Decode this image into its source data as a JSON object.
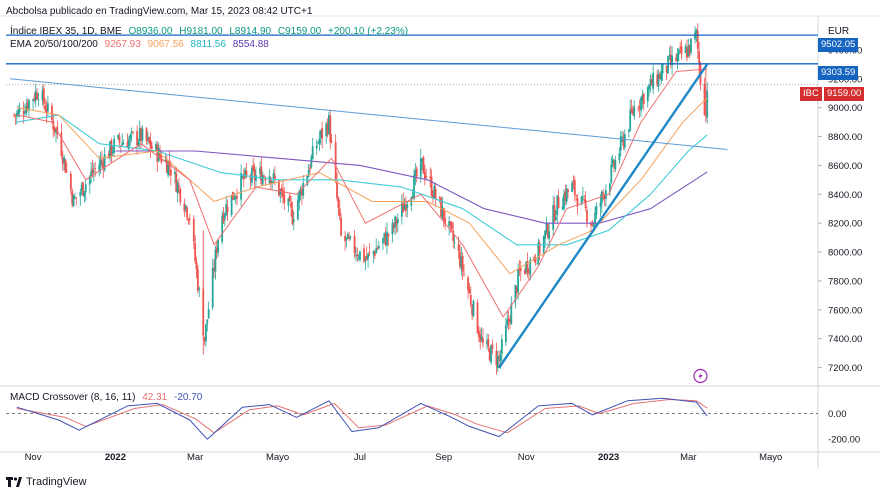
{
  "publisher": "Abcbolsa publicado en TradingView.com, Mar 15, 2023 08:42 UTC+1",
  "legend": {
    "symbol": "Índice IBEX 35, 1D, BME",
    "open": "O8936.00",
    "high": "H9181.00",
    "low": "L8914.90",
    "close": "C9159.00",
    "change": "+200.10 (+2.23%)",
    "ema_label": "EMA 20/50/100/200",
    "ema20": "9267.93",
    "ema50": "9067.56",
    "ema100": "8811.56",
    "ema200": "8554.88"
  },
  "currency": "EUR",
  "macd_label": "MACD Crossover (8, 16, 11)",
  "macd_values": [
    "42.31",
    "-20.70"
  ],
  "price_tags": {
    "resistance_high": "9502.05",
    "resistance_low": "9303.59",
    "symbol_tag": "IBC",
    "last": "9159.00"
  },
  "branding": "TradingView",
  "colors": {
    "up": "#26a69a",
    "down": "#ef5350",
    "ema20": "#f06e6e",
    "ema50": "#f7a35c",
    "ema100": "#3ecbd6",
    "ema200": "#7e57c2",
    "trendline": "#1e88c7",
    "hline": "#1565c0",
    "last": "#d32f2f",
    "macd": "#3f51b5",
    "signal": "#e57373"
  },
  "chart_data": {
    "type": "candlestick",
    "y_axis": {
      "ylim": [
        7100,
        9600
      ],
      "ticks": [
        7200,
        7400,
        7600,
        7800,
        8000,
        8200,
        8400,
        8600,
        8800,
        9000,
        9200,
        9400
      ]
    },
    "x_axis": {
      "ticks": [
        "Nov",
        "2022",
        "Mar",
        "Mayo",
        "Jul",
        "Sep",
        "Nov",
        "2023",
        "Mar",
        "Mayo"
      ]
    },
    "horizontal_lines": [
      9502.05,
      9303.59
    ],
    "close_path": [
      [
        "2021-10-20",
        8950
      ],
      [
        "2021-11-05",
        9120
      ],
      [
        "2021-11-20",
        8800
      ],
      [
        "2021-12-01",
        8350
      ],
      [
        "2021-12-15",
        8550
      ],
      [
        "2022-01-01",
        8750
      ],
      [
        "2022-01-20",
        8800
      ],
      [
        "2022-02-10",
        8600
      ],
      [
        "2022-02-25",
        8250
      ],
      [
        "2022-03-08",
        7400
      ],
      [
        "2022-03-20",
        8250
      ],
      [
        "2022-04-05",
        8500
      ],
      [
        "2022-04-25",
        8550
      ],
      [
        "2022-05-12",
        8250
      ],
      [
        "2022-05-30",
        8750
      ],
      [
        "2022-06-08",
        8900
      ],
      [
        "2022-06-17",
        8100
      ],
      [
        "2022-07-06",
        7950
      ],
      [
        "2022-07-25",
        8150
      ],
      [
        "2022-08-16",
        8600
      ],
      [
        "2022-09-01",
        8250
      ],
      [
        "2022-09-13",
        7950
      ],
      [
        "2022-09-30",
        7350
      ],
      [
        "2022-10-12",
        7250
      ],
      [
        "2022-10-27",
        7850
      ],
      [
        "2022-11-10",
        8000
      ],
      [
        "2022-11-25",
        8350
      ],
      [
        "2022-12-05",
        8450
      ],
      [
        "2022-12-20",
        8200
      ],
      [
        "2023-01-05",
        8600
      ],
      [
        "2023-01-20",
        9000
      ],
      [
        "2023-02-01",
        9150
      ],
      [
        "2023-02-15",
        9300
      ],
      [
        "2023-03-01",
        9400
      ],
      [
        "2023-03-07",
        9500
      ],
      [
        "2023-03-10",
        9200
      ],
      [
        "2023-03-14",
        8950
      ],
      [
        "2023-03-15",
        9159
      ]
    ],
    "ema20": [
      [
        "2021-10-20",
        8950
      ],
      [
        "2021-11-15",
        8900
      ],
      [
        "2021-12-10",
        8500
      ],
      [
        "2022-01-20",
        8750
      ],
      [
        "2022-02-25",
        8500
      ],
      [
        "2022-03-15",
        8050
      ],
      [
        "2022-04-15",
        8450
      ],
      [
        "2022-05-15",
        8400
      ],
      [
        "2022-06-10",
        8650
      ],
      [
        "2022-07-05",
        8200
      ],
      [
        "2022-08-15",
        8400
      ],
      [
        "2022-09-15",
        8050
      ],
      [
        "2022-10-15",
        7550
      ],
      [
        "2022-11-10",
        7900
      ],
      [
        "2022-12-01",
        8300
      ],
      [
        "2023-01-01",
        8400
      ],
      [
        "2023-01-25",
        8900
      ],
      [
        "2023-02-20",
        9250
      ],
      [
        "2023-03-15",
        9267.93
      ]
    ],
    "ema50": [
      [
        "2021-10-20",
        9000
      ],
      [
        "2021-11-20",
        8950
      ],
      [
        "2021-12-20",
        8650
      ],
      [
        "2022-02-01",
        8700
      ],
      [
        "2022-03-15",
        8350
      ],
      [
        "2022-04-15",
        8450
      ],
      [
        "2022-06-01",
        8550
      ],
      [
        "2022-07-10",
        8350
      ],
      [
        "2022-08-20",
        8350
      ],
      [
        "2022-09-20",
        8200
      ],
      [
        "2022-10-20",
        7850
      ],
      [
        "2022-11-25",
        8050
      ],
      [
        "2022-12-20",
        8150
      ],
      [
        "2023-01-25",
        8500
      ],
      [
        "2023-02-25",
        8900
      ],
      [
        "2023-03-15",
        9067.56
      ]
    ],
    "ema100": [
      [
        "2021-10-20",
        8900
      ],
      [
        "2021-11-20",
        8950
      ],
      [
        "2021-12-20",
        8750
      ],
      [
        "2022-02-01",
        8700
      ],
      [
        "2022-03-20",
        8550
      ],
      [
        "2022-05-01",
        8500
      ],
      [
        "2022-06-15",
        8500
      ],
      [
        "2022-08-01",
        8450
      ],
      [
        "2022-09-15",
        8300
      ],
      [
        "2022-10-25",
        8050
      ],
      [
        "2022-12-01",
        8050
      ],
      [
        "2023-01-01",
        8150
      ],
      [
        "2023-02-01",
        8400
      ],
      [
        "2023-03-01",
        8700
      ],
      [
        "2023-03-15",
        8811.56
      ]
    ],
    "ema200": [
      [
        "2022-01-01",
        8700
      ],
      [
        "2022-03-01",
        8700
      ],
      [
        "2022-05-01",
        8650
      ],
      [
        "2022-07-01",
        8600
      ],
      [
        "2022-08-20",
        8500
      ],
      [
        "2022-10-01",
        8300
      ],
      [
        "2022-11-15",
        8200
      ],
      [
        "2022-12-25",
        8200
      ],
      [
        "2023-02-01",
        8300
      ],
      [
        "2023-03-15",
        8554.88
      ]
    ],
    "trendlines": [
      {
        "from": [
          "2021-10-15",
          9200
        ],
        "to": [
          "2023-03-30",
          8710
        ]
      },
      {
        "from": [
          "2022-10-12",
          7200
        ],
        "to": [
          "2023-03-15",
          9300
        ]
      }
    ],
    "macd": {
      "ylim": [
        -300,
        200
      ],
      "ticks": [
        0,
        -200
      ],
      "macd_line": [
        [
          "2021-10-20",
          50
        ],
        [
          "2021-11-20",
          -50
        ],
        [
          "2021-12-05",
          -130
        ],
        [
          "2022-01-10",
          60
        ],
        [
          "2022-02-01",
          80
        ],
        [
          "2022-02-25",
          -50
        ],
        [
          "2022-03-10",
          -200
        ],
        [
          "2022-04-05",
          50
        ],
        [
          "2022-04-25",
          70
        ],
        [
          "2022-05-15",
          -30
        ],
        [
          "2022-06-08",
          100
        ],
        [
          "2022-06-25",
          -140
        ],
        [
          "2022-07-15",
          -110
        ],
        [
          "2022-08-15",
          80
        ],
        [
          "2022-09-05",
          -20
        ],
        [
          "2022-09-20",
          -100
        ],
        [
          "2022-10-12",
          -180
        ],
        [
          "2022-11-10",
          60
        ],
        [
          "2022-12-05",
          80
        ],
        [
          "2022-12-20",
          -10
        ],
        [
          "2023-01-15",
          100
        ],
        [
          "2023-02-10",
          120
        ],
        [
          "2023-03-07",
          90
        ],
        [
          "2023-03-15",
          -20.7
        ]
      ],
      "signal_line": [
        [
          "2021-10-20",
          40
        ],
        [
          "2021-11-25",
          -30
        ],
        [
          "2021-12-10",
          -100
        ],
        [
          "2022-01-15",
          40
        ],
        [
          "2022-02-05",
          70
        ],
        [
          "2022-03-01",
          -40
        ],
        [
          "2022-03-15",
          -150
        ],
        [
          "2022-04-10",
          30
        ],
        [
          "2022-05-01",
          60
        ],
        [
          "2022-05-20",
          -10
        ],
        [
          "2022-06-12",
          80
        ],
        [
          "2022-06-30",
          -110
        ],
        [
          "2022-07-20",
          -90
        ],
        [
          "2022-08-20",
          60
        ],
        [
          "2022-09-10",
          -10
        ],
        [
          "2022-09-25",
          -80
        ],
        [
          "2022-10-18",
          -150
        ],
        [
          "2022-11-15",
          40
        ],
        [
          "2022-12-10",
          60
        ],
        [
          "2022-12-25",
          0
        ],
        [
          "2023-01-20",
          80
        ],
        [
          "2023-02-15",
          110
        ],
        [
          "2023-03-07",
          100
        ],
        [
          "2023-03-15",
          42.31
        ]
      ]
    }
  }
}
